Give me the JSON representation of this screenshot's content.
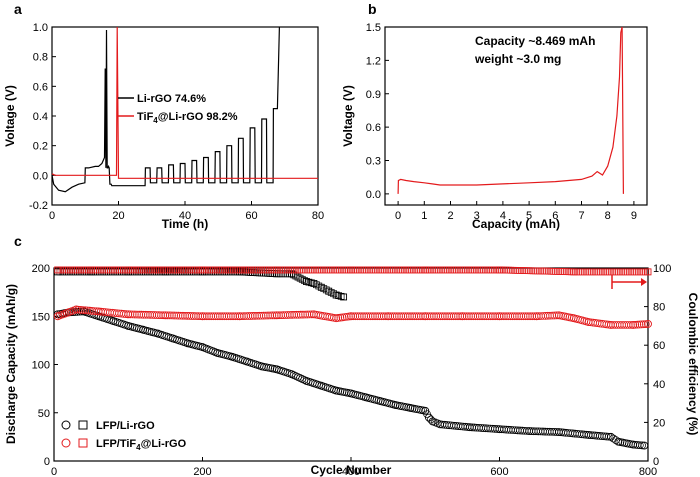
{
  "chart_data": [
    {
      "panel": "a",
      "type": "line",
      "xlabel": "Time (h)",
      "ylabel": "Voltage (V)",
      "xlim": [
        0,
        80
      ],
      "ylim": [
        -0.2,
        1.0
      ],
      "xticks": [
        "0",
        "20",
        "40",
        "60",
        "80"
      ],
      "yticks": [
        "-0.2",
        "0.0",
        "0.2",
        "0.4",
        "0.6",
        "0.8",
        "1.0"
      ],
      "legend_position": "center",
      "series": [
        {
          "name": "Li-rGO 74.6%",
          "color": "#000000",
          "x": [
            0,
            0.5,
            2,
            4,
            6,
            8,
            9.9,
            10,
            10.5,
            11,
            13,
            14,
            15,
            15.8,
            16,
            16.2,
            16.4,
            16.6,
            16.8,
            17.0,
            17.2,
            17.4,
            17.6,
            17.8,
            18,
            20,
            28,
            28.1,
            29.5,
            29.6,
            31.5,
            31.6,
            33,
            33.1,
            35,
            35.1,
            36.5,
            36.6,
            38.5,
            38.6,
            40,
            40.1,
            42,
            42.1,
            43.5,
            43.6,
            45.5,
            45.6,
            47,
            47.1,
            49,
            49.1,
            50.5,
            50.6,
            52.5,
            52.6,
            54,
            54.1,
            56,
            56.1,
            57.5,
            57.6,
            59.5,
            59.6,
            61,
            61.1,
            63,
            63.1,
            64.5,
            64.6,
            66.5,
            66.6,
            67.8,
            68.4
          ],
          "y": [
            0.0,
            -0.06,
            -0.1,
            -0.11,
            -0.08,
            -0.06,
            -0.05,
            0.05,
            0.05,
            0.05,
            0.06,
            0.06,
            0.08,
            0.12,
            0.72,
            0.05,
            0.98,
            0.05,
            0.05,
            0.06,
            0.05,
            -0.06,
            -0.06,
            -0.06,
            -0.07,
            -0.07,
            -0.07,
            0.05,
            0.05,
            -0.05,
            -0.05,
            0.05,
            0.05,
            -0.05,
            -0.05,
            0.07,
            0.07,
            -0.05,
            -0.05,
            0.08,
            0.08,
            -0.05,
            -0.05,
            0.1,
            0.1,
            -0.05,
            -0.05,
            0.12,
            0.12,
            -0.05,
            -0.05,
            0.16,
            0.16,
            -0.05,
            -0.05,
            0.2,
            0.2,
            -0.05,
            -0.05,
            0.25,
            0.25,
            -0.05,
            -0.05,
            0.32,
            0.32,
            -0.05,
            -0.05,
            0.38,
            0.38,
            -0.05,
            -0.05,
            0.45,
            0.45,
            1.0
          ]
        },
        {
          "name": "TiF4@Li-rGO 98.2%",
          "color": "#e31a1c",
          "x": [
            0,
            1,
            5,
            10,
            15,
            19,
            19.4,
            19.6,
            20,
            25,
            30,
            40,
            50,
            60,
            70,
            78,
            80
          ],
          "y": [
            0.01,
            0.0,
            0.0,
            0.0,
            0.0,
            0.0,
            0.0,
            1.0,
            -0.02,
            -0.02,
            -0.02,
            -0.02,
            -0.02,
            -0.02,
            -0.02,
            -0.02,
            -0.02
          ]
        }
      ]
    },
    {
      "panel": "b",
      "type": "line",
      "xlabel": "Capacity (mAh)",
      "ylabel": "Voltage (V)",
      "xlim": [
        -0.5,
        9.5
      ],
      "ylim": [
        -0.1,
        1.5
      ],
      "xticks": [
        "0",
        "1",
        "2",
        "3",
        "4",
        "5",
        "6",
        "7",
        "8",
        "9"
      ],
      "yticks": [
        "0.0",
        "0.3",
        "0.6",
        "0.9",
        "1.2",
        "1.5"
      ],
      "annotations": [
        "Capacity ~8.469 mAh",
        "weight ~3.0 mg"
      ],
      "series": [
        {
          "name": "",
          "color": "#e31a1c",
          "x": [
            0,
            0.01,
            0.1,
            0.3,
            0.6,
            1.0,
            1.3,
            1.6,
            2.0,
            3.0,
            4.0,
            5.0,
            6.0,
            7.0,
            7.4,
            7.6,
            7.8,
            8.0,
            8.2,
            8.35,
            8.45,
            8.5,
            8.55,
            8.6
          ],
          "y": [
            0.0,
            0.12,
            0.13,
            0.12,
            0.11,
            0.1,
            0.09,
            0.08,
            0.08,
            0.08,
            0.09,
            0.1,
            0.11,
            0.13,
            0.16,
            0.2,
            0.17,
            0.25,
            0.42,
            0.7,
            1.05,
            1.45,
            1.5,
            0.0
          ]
        }
      ]
    },
    {
      "panel": "c",
      "type": "scatter",
      "xlabel": "Cycle Number",
      "ylabel": "Discharge Capacity (mAh/g)",
      "y2label": "Coulombic efficiency (%)",
      "xlim": [
        0,
        800
      ],
      "ylim": [
        0,
        200
      ],
      "y2lim": [
        0,
        100
      ],
      "xticks": [
        "0",
        "200",
        "400",
        "600",
        "800"
      ],
      "yticks": [
        "0",
        "50",
        "100",
        "150",
        "200"
      ],
      "y2ticks": [
        "0",
        "20",
        "40",
        "60",
        "80",
        "100"
      ],
      "legend_position": "bottom-left",
      "series": [
        {
          "name": "LFP/Li-rGO",
          "axis": "left",
          "marker": "circle",
          "color": "#000000",
          "x": [
            5,
            20,
            40,
            60,
            80,
            100,
            120,
            140,
            160,
            180,
            200,
            220,
            240,
            260,
            280,
            300,
            320,
            340,
            360,
            380,
            400,
            420,
            440,
            460,
            480,
            500,
            505,
            510,
            520,
            560,
            600,
            640,
            680,
            720,
            750,
            760,
            780,
            795
          ],
          "y": [
            152,
            154,
            155,
            150,
            145,
            140,
            136,
            132,
            127,
            122,
            118,
            112,
            108,
            103,
            98,
            95,
            90,
            83,
            78,
            73,
            70,
            66,
            62,
            58,
            55,
            52,
            45,
            41,
            38,
            35,
            33,
            31,
            30,
            27,
            25,
            20,
            17,
            16
          ]
        },
        {
          "name": "",
          "axis": "right",
          "marker": "square",
          "color": "#000000",
          "x": [
            5,
            50,
            100,
            150,
            200,
            250,
            300,
            320,
            340,
            350,
            360,
            370,
            380,
            390
          ],
          "y": [
            98,
            98,
            98,
            98,
            98,
            98,
            97,
            97,
            93,
            92,
            90,
            88,
            86,
            85
          ]
        },
        {
          "name": "LFP/TiF4@Li-rGO",
          "axis": "left",
          "marker": "circle",
          "color": "#e31a1c",
          "x": [
            5,
            30,
            60,
            100,
            150,
            200,
            250,
            300,
            350,
            380,
            400,
            450,
            500,
            550,
            600,
            650,
            680,
            700,
            720,
            750,
            780,
            800
          ],
          "y": [
            150,
            157,
            155,
            152,
            151,
            150,
            150,
            151,
            152,
            148,
            150,
            150,
            150,
            150,
            150,
            150,
            151,
            148,
            144,
            141,
            141,
            142
          ]
        },
        {
          "name": "",
          "axis": "right",
          "marker": "square",
          "color": "#e31a1c",
          "x": [
            5,
            50,
            100,
            200,
            300,
            400,
            500,
            600,
            700,
            800
          ],
          "y": [
            99,
            99,
            99,
            99,
            99,
            99,
            99,
            99,
            98,
            98
          ]
        }
      ]
    }
  ],
  "labels": {
    "panel_a": "a",
    "panel_b": "b",
    "panel_c": "c",
    "legend_a_black": "Li-rGO 74.6%",
    "legend_a_red_pre": "TiF",
    "legend_a_red_sub": "4",
    "legend_a_red_post": "@Li-rGO 98.2%",
    "annot_b_1": "Capacity ~8.469 mAh",
    "annot_b_2": "weight ~3.0 mg",
    "legend_c_black": "LFP/Li-rGO",
    "legend_c_red_pre": "LFP/TiF",
    "legend_c_red_sub": "4",
    "legend_c_red_post": "@Li-rGO"
  }
}
